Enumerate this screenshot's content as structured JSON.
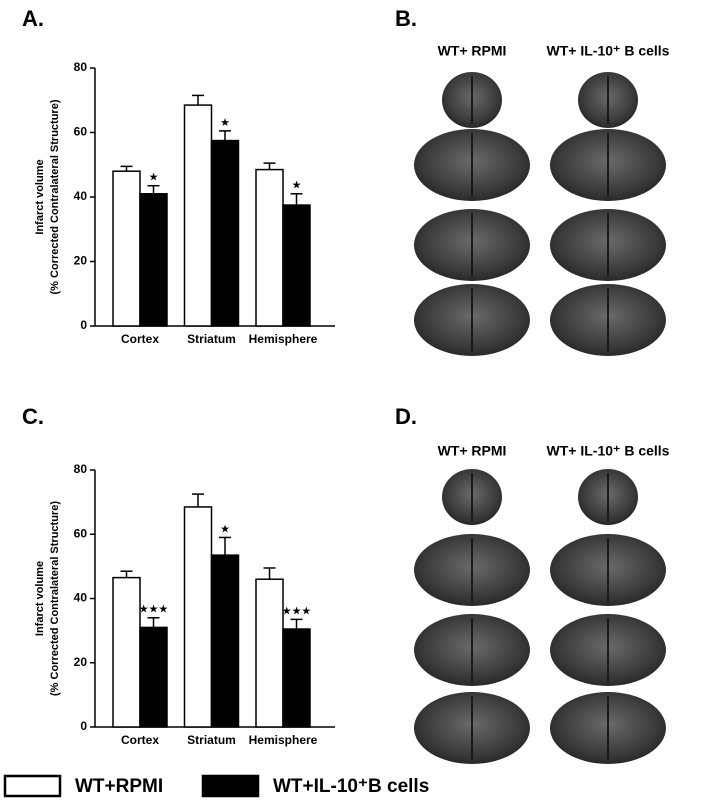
{
  "chart_data": [
    {
      "type": "bar",
      "panel": "A.",
      "ylabel": [
        "Infarct volume",
        "(% Corrected Contralateral Structure)"
      ],
      "categories": [
        "Cortex",
        "Striatum",
        "Hemisphere"
      ],
      "ylim": [
        0,
        80
      ],
      "yticks": [
        0,
        20,
        40,
        60,
        80
      ],
      "series": [
        {
          "name": "WT+RPMI",
          "color": "#ffffff",
          "values": [
            48,
            68.5,
            48.5
          ],
          "errors": [
            1.5,
            3,
            2
          ]
        },
        {
          "name": "WT+IL-10⁺B cells",
          "color": "#000000",
          "values": [
            41,
            57.5,
            37.5
          ],
          "errors": [
            2.5,
            3,
            3.5
          ],
          "significance": [
            "★",
            "★",
            "★"
          ]
        }
      ]
    },
    {
      "type": "bar",
      "panel": "C.",
      "ylabel": [
        "Infarct volume",
        "(% Corrected Contralateral Structure)"
      ],
      "categories": [
        "Cortex",
        "Striatum",
        "Hemisphere"
      ],
      "ylim": [
        0,
        80
      ],
      "yticks": [
        0,
        20,
        40,
        60,
        80
      ],
      "series": [
        {
          "name": "WT+RPMI",
          "color": "#ffffff",
          "values": [
            46.5,
            68.5,
            46
          ],
          "errors": [
            2,
            4,
            3.5
          ]
        },
        {
          "name": "WT+IL-10⁺B cells",
          "color": "#000000",
          "values": [
            31,
            53.5,
            30.5
          ],
          "errors": [
            3,
            5.5,
            3
          ],
          "significance": [
            "★★★",
            "★",
            "★★★"
          ]
        }
      ]
    }
  ],
  "image_panels": [
    {
      "label": "B.",
      "columns": [
        "WT+ RPMI",
        "WT+ IL-10⁺ B cells"
      ]
    },
    {
      "label": "D.",
      "columns": [
        "WT+ RPMI",
        "WT+ IL-10⁺ B cells"
      ]
    }
  ]
}
